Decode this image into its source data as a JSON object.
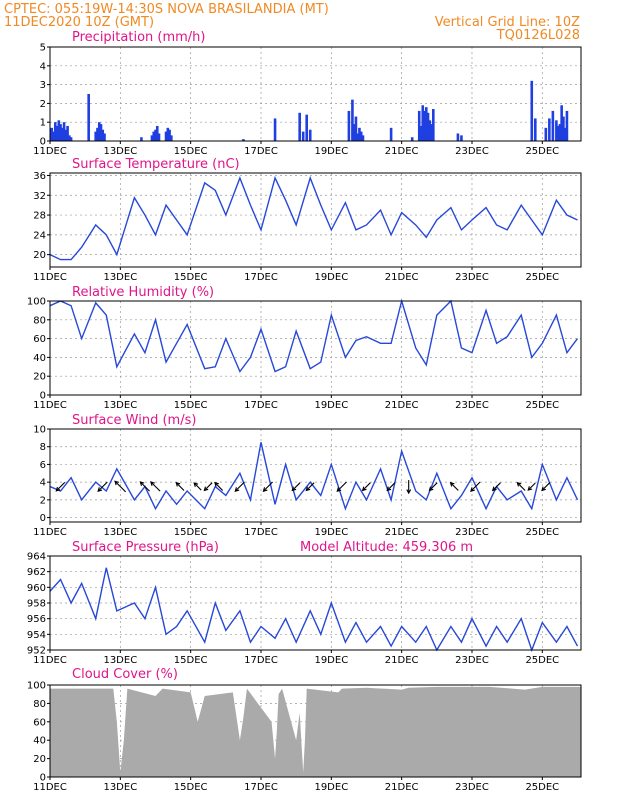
{
  "header": {
    "line1_left": "CPTEC:    055:19W-14:30S   NOVA BRASILANDIA (MT)",
    "line2_left": "11DEC2020  10Z (GMT)",
    "line2_right": "Vertical Grid Line: 10Z",
    "line3_right": "TQ0126L028",
    "model_altitude": "Model Altitude: 459.306  m"
  },
  "colors": {
    "header": "#f08a24",
    "title": "#e0158a",
    "series": "#2748d8",
    "cloud": "#aaaaaa"
  },
  "x_tick_labels": [
    "11DEC",
    "13DEC",
    "15DEC",
    "17DEC",
    "19DEC",
    "21DEC",
    "23DEC",
    "25DEC"
  ],
  "x_tick_days": [
    0,
    2,
    4,
    6,
    8,
    10,
    12,
    14
  ],
  "x_range_days": [
    0,
    15.1
  ],
  "chart_data": [
    {
      "id": "precip",
      "type": "bar",
      "title": "Precipitation (mm/h)",
      "ylim": [
        0,
        5
      ],
      "yticks": [
        0,
        1,
        2,
        3,
        4,
        5
      ],
      "grid": true,
      "x_unit": "days since 11DEC2020 10Z",
      "x": [
        0.05,
        0.1,
        0.15,
        0.2,
        0.25,
        0.3,
        0.35,
        0.4,
        0.45,
        0.5,
        0.55,
        0.6,
        1.1,
        1.3,
        1.35,
        1.4,
        1.45,
        1.5,
        1.55,
        2.6,
        2.9,
        2.95,
        3.0,
        3.05,
        3.1,
        3.3,
        3.35,
        3.4,
        3.45,
        5.5,
        6.4,
        7.1,
        7.2,
        7.3,
        7.4,
        8.5,
        8.6,
        8.65,
        8.7,
        8.75,
        8.8,
        8.85,
        8.9,
        9.7,
        10.3,
        10.5,
        10.55,
        10.6,
        10.65,
        10.7,
        10.75,
        10.8,
        10.85,
        10.9,
        11.6,
        11.7,
        13.7,
        13.8,
        14.1,
        14.2,
        14.3,
        14.4,
        14.45,
        14.5,
        14.55,
        14.6,
        14.65,
        14.7
      ],
      "values": [
        0.7,
        0.5,
        1.0,
        0.8,
        1.1,
        0.9,
        0.7,
        1.0,
        0.6,
        0.8,
        0.3,
        0.2,
        2.5,
        0.5,
        0.7,
        1.0,
        0.9,
        0.6,
        0.4,
        0.2,
        0.3,
        0.5,
        0.6,
        0.8,
        0.4,
        0.5,
        0.7,
        0.6,
        0.3,
        0.1,
        1.2,
        1.5,
        0.5,
        1.4,
        0.6,
        1.6,
        2.2,
        0.9,
        1.3,
        0.4,
        0.7,
        0.5,
        0.3,
        0.7,
        0.2,
        1.6,
        0.8,
        1.9,
        1.6,
        1.8,
        1.5,
        1.1,
        0.9,
        1.7,
        0.4,
        0.3,
        3.2,
        1.2,
        0.7,
        1.2,
        1.6,
        1.1,
        0.8,
        0.9,
        1.9,
        1.3,
        0.7,
        1.6
      ]
    },
    {
      "id": "temp",
      "type": "line",
      "title": "Surface Temperature (nC)",
      "ylim": [
        17.5,
        36.5
      ],
      "yticks": [
        20,
        24,
        28,
        32,
        36
      ],
      "grid": true,
      "x_unit": "days since 11DEC2020 10Z",
      "x": [
        0,
        0.3,
        0.6,
        0.9,
        1.3,
        1.6,
        1.9,
        2.4,
        2.7,
        3.0,
        3.3,
        3.6,
        3.9,
        4.4,
        4.7,
        5.0,
        5.4,
        5.7,
        6.0,
        6.4,
        6.7,
        7.0,
        7.4,
        7.7,
        8.0,
        8.4,
        8.7,
        9.0,
        9.4,
        9.7,
        10.0,
        10.4,
        10.7,
        11.0,
        11.4,
        11.7,
        12.0,
        12.4,
        12.7,
        13.0,
        13.4,
        13.7,
        14.0,
        14.4,
        14.7,
        15.0
      ],
      "values": [
        20,
        19,
        19,
        21.5,
        26,
        24,
        20,
        31.5,
        28,
        24,
        30,
        27,
        24,
        34.5,
        33,
        28,
        35.5,
        30,
        25,
        35.5,
        31,
        26,
        35.5,
        30,
        25,
        30.5,
        25,
        26,
        29,
        24,
        28.5,
        26,
        23.5,
        27,
        29.5,
        25,
        27,
        29.5,
        26,
        25,
        30,
        27,
        24,
        31,
        28,
        27
      ]
    },
    {
      "id": "rh",
      "type": "line",
      "title": "Relative Humidity (%)",
      "ylim": [
        0,
        100
      ],
      "yticks": [
        0,
        20,
        40,
        60,
        80,
        100
      ],
      "grid": true,
      "x_unit": "days since 11DEC2020 10Z",
      "x": [
        0,
        0.3,
        0.6,
        0.9,
        1.3,
        1.6,
        1.9,
        2.4,
        2.7,
        3.0,
        3.3,
        3.6,
        3.9,
        4.4,
        4.7,
        5.0,
        5.4,
        5.7,
        6.0,
        6.4,
        6.7,
        7.0,
        7.4,
        7.7,
        8.0,
        8.4,
        8.7,
        9.0,
        9.4,
        9.7,
        10.0,
        10.4,
        10.7,
        11.0,
        11.4,
        11.7,
        12.0,
        12.4,
        12.7,
        13.0,
        13.4,
        13.7,
        14.0,
        14.4,
        14.7,
        15.0
      ],
      "values": [
        95,
        100,
        95,
        60,
        98,
        85,
        30,
        65,
        45,
        80,
        35,
        55,
        75,
        28,
        30,
        60,
        25,
        40,
        70,
        25,
        30,
        68,
        28,
        35,
        85,
        40,
        58,
        62,
        55,
        55,
        100,
        50,
        32,
        85,
        100,
        50,
        45,
        90,
        55,
        62,
        85,
        40,
        55,
        85,
        45,
        60
      ]
    },
    {
      "id": "wind",
      "type": "line",
      "title": "Surface Wind (m/s)",
      "ylim": [
        -0.5,
        10
      ],
      "yticks": [
        0,
        2,
        4,
        6,
        8,
        10
      ],
      "grid": true,
      "x_unit": "days since 11DEC2020 10Z",
      "x": [
        0,
        0.3,
        0.6,
        0.9,
        1.3,
        1.6,
        1.9,
        2.4,
        2.7,
        3.0,
        3.3,
        3.6,
        3.9,
        4.4,
        4.7,
        5.0,
        5.4,
        5.7,
        6.0,
        6.4,
        6.7,
        7.0,
        7.4,
        7.7,
        8.0,
        8.4,
        8.7,
        9.0,
        9.4,
        9.7,
        10.0,
        10.4,
        10.7,
        11.0,
        11.4,
        11.7,
        12.0,
        12.4,
        12.7,
        13.0,
        13.4,
        13.7,
        14.0,
        14.4,
        14.7,
        15.0
      ],
      "values": [
        3.5,
        3,
        4.5,
        2,
        4,
        3,
        5.5,
        2,
        3.5,
        1,
        3,
        1.5,
        3,
        1,
        3.5,
        2.5,
        5,
        2,
        8.5,
        1.5,
        6,
        2,
        4,
        2.5,
        6,
        1,
        4,
        2,
        5.5,
        2,
        7.5,
        3,
        2,
        5,
        1,
        2.5,
        4.5,
        1,
        3.5,
        2,
        3,
        1,
        6,
        2,
        4.5,
        2
      ],
      "arrows": [
        {
          "day": 0.3,
          "speed": 3.5,
          "dir": "down-left"
        },
        {
          "day": 1.5,
          "speed": 4,
          "dir": "down-left"
        },
        {
          "day": 2.0,
          "speed": 5,
          "dir": "up-left"
        },
        {
          "day": 2.7,
          "speed": 4,
          "dir": "up-left"
        },
        {
          "day": 3.0,
          "speed": 4,
          "dir": "up-left"
        },
        {
          "day": 3.7,
          "speed": 3,
          "dir": "up-left"
        },
        {
          "day": 4.2,
          "speed": 2.5,
          "dir": "up-left"
        },
        {
          "day": 4.5,
          "speed": 3,
          "dir": "down-left"
        },
        {
          "day": 4.8,
          "speed": 3,
          "dir": "up-left"
        },
        {
          "day": 5.4,
          "speed": 4,
          "dir": "down-left"
        },
        {
          "day": 6.2,
          "speed": 4,
          "dir": "down-left"
        },
        {
          "day": 7.0,
          "speed": 3,
          "dir": "down-left"
        },
        {
          "day": 7.4,
          "speed": 3,
          "dir": "down-left"
        },
        {
          "day": 8.3,
          "speed": 4,
          "dir": "down-left"
        },
        {
          "day": 9.0,
          "speed": 3,
          "dir": "down-left"
        },
        {
          "day": 9.7,
          "speed": 3,
          "dir": "down-left"
        },
        {
          "day": 10.2,
          "speed": 4,
          "dir": "down"
        },
        {
          "day": 10.9,
          "speed": 3,
          "dir": "down-left"
        },
        {
          "day": 11.5,
          "speed": 3,
          "dir": "up-left"
        },
        {
          "day": 12.1,
          "speed": 4,
          "dir": "down-left"
        },
        {
          "day": 12.7,
          "speed": 3,
          "dir": "down-left"
        },
        {
          "day": 13.4,
          "speed": 3,
          "dir": "up-left"
        },
        {
          "day": 13.7,
          "speed": 2.5,
          "dir": "down-left"
        },
        {
          "day": 14.1,
          "speed": 3,
          "dir": "down-left"
        }
      ]
    },
    {
      "id": "pressure",
      "type": "line",
      "title": "Surface Pressure (hPa)",
      "ylim": [
        952,
        964
      ],
      "yticks": [
        952,
        954,
        956,
        958,
        960,
        962,
        964
      ],
      "grid": true,
      "x_unit": "days since 11DEC2020 10Z",
      "x": [
        0,
        0.3,
        0.6,
        0.9,
        1.3,
        1.6,
        1.9,
        2.4,
        2.7,
        3.0,
        3.3,
        3.6,
        3.9,
        4.4,
        4.7,
        5.0,
        5.4,
        5.7,
        6.0,
        6.4,
        6.7,
        7.0,
        7.4,
        7.7,
        8.0,
        8.4,
        8.7,
        9.0,
        9.4,
        9.7,
        10.0,
        10.4,
        10.7,
        11.0,
        11.4,
        11.7,
        12.0,
        12.4,
        12.7,
        13.0,
        13.4,
        13.7,
        14.0,
        14.4,
        14.7,
        15.0
      ],
      "values": [
        959.5,
        961,
        958,
        960.5,
        956,
        962.5,
        957,
        958,
        956,
        960,
        954,
        955,
        957,
        953,
        958,
        954.5,
        957,
        953,
        955,
        953.5,
        956,
        953,
        957,
        954,
        958,
        953,
        955.5,
        953,
        955,
        952.5,
        955,
        953,
        955,
        952,
        955,
        953,
        956,
        952.5,
        955,
        953,
        956,
        952,
        955.5,
        953,
        955,
        952.5
      ]
    },
    {
      "id": "cloud",
      "type": "area",
      "title": "Cloud Cover (%)",
      "ylim": [
        0,
        100
      ],
      "yticks": [
        0,
        20,
        40,
        60,
        80,
        100
      ],
      "grid": true,
      "x_unit": "days since 11DEC2020 10Z",
      "x": [
        0,
        1.8,
        1.9,
        2.0,
        2.1,
        2.2,
        3.0,
        3.2,
        4.0,
        4.2,
        4.4,
        5.2,
        5.4,
        5.5,
        5.6,
        6.3,
        6.4,
        6.45,
        6.5,
        6.6,
        7.0,
        7.1,
        7.2,
        7.25,
        7.3,
        8.2,
        8.3,
        9.0,
        10.0,
        10.2,
        11.0,
        12.5,
        13.5,
        14.0,
        15.1
      ],
      "values": [
        96,
        96,
        60,
        5,
        40,
        96,
        88,
        96,
        92,
        60,
        88,
        92,
        40,
        65,
        96,
        60,
        20,
        50,
        90,
        96,
        40,
        70,
        5,
        40,
        96,
        92,
        96,
        97,
        95,
        97,
        98,
        98,
        95,
        98,
        98
      ]
    }
  ]
}
